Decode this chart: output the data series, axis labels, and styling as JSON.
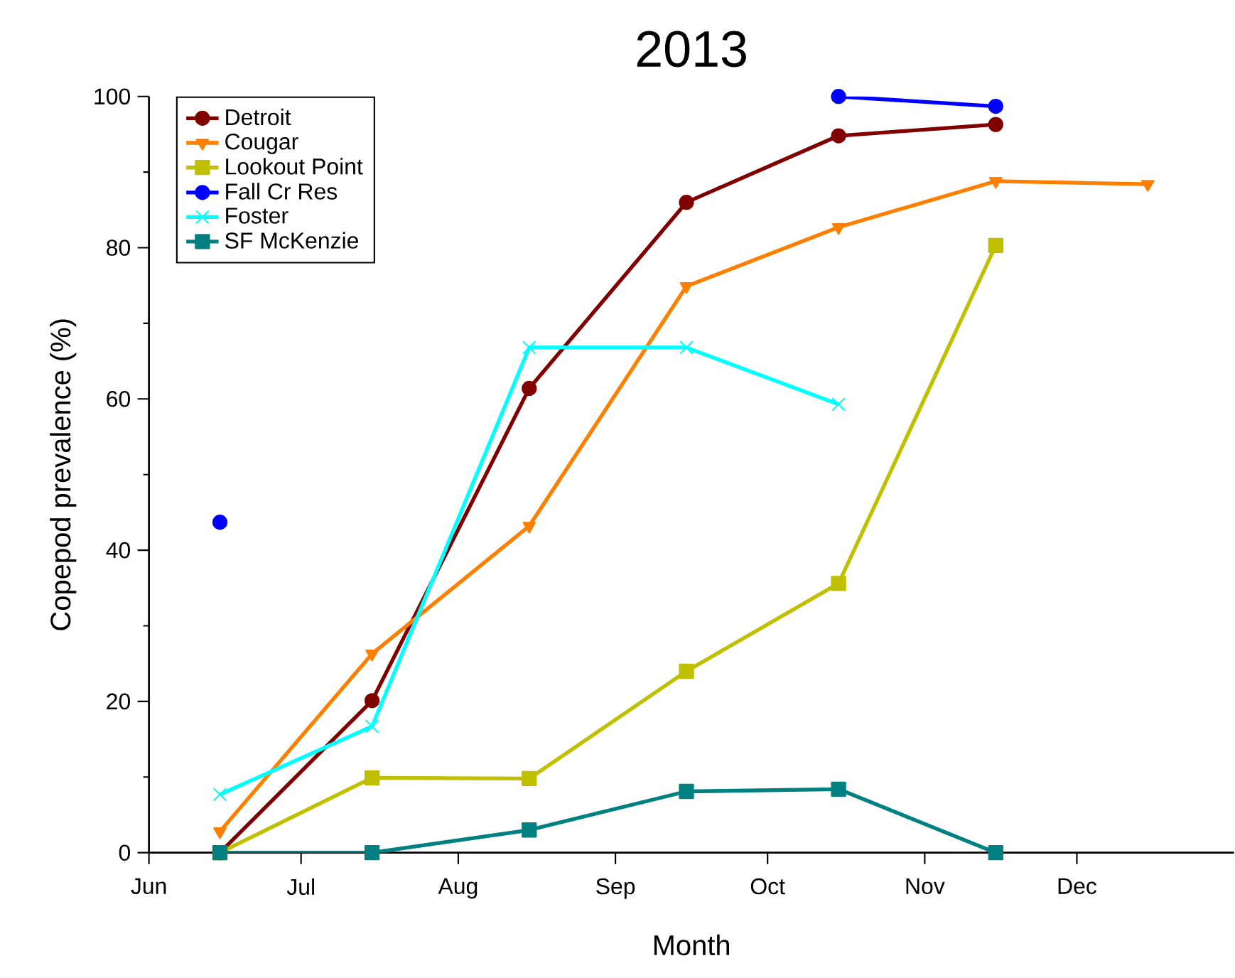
{
  "chart_data": {
    "type": "line",
    "title": "2013",
    "xlabel": "Month",
    "ylabel": "Copepod prevalence (%)",
    "x": [
      "2013-06-15",
      "2013-07-15",
      "2013-08-15",
      "2013-09-15",
      "2013-10-15",
      "2013-11-15",
      "2013-12-15"
    ],
    "xlim": [
      "2013-06-01",
      "2014-01-01"
    ],
    "xticks": [
      {
        "value": "2013-06-01",
        "label": "Jun"
      },
      {
        "value": "2013-07-01",
        "label": "Jul"
      },
      {
        "value": "2013-08-01",
        "label": "Aug"
      },
      {
        "value": "2013-09-01",
        "label": "Sep"
      },
      {
        "value": "2013-10-01",
        "label": "Oct"
      },
      {
        "value": "2013-11-01",
        "label": "Nov"
      },
      {
        "value": "2013-12-01",
        "label": "Dec"
      }
    ],
    "ylim": [
      0,
      100
    ],
    "yticks": [
      0,
      20,
      40,
      60,
      80,
      100
    ],
    "legend": "top left",
    "line_style": "solid",
    "series": [
      {
        "name": "Detroit",
        "color": "#800000",
        "marker": "circle",
        "values": [
          0,
          20.1,
          61.4,
          86,
          94.8,
          96.3,
          null
        ]
      },
      {
        "name": "Cougar",
        "color": "#ff8000",
        "marker": "triangle",
        "values": [
          2.8,
          26.3,
          43.2,
          74.9,
          82.7,
          88.8,
          88.4
        ]
      },
      {
        "name": "Lookout Point",
        "color": "#c0c000",
        "marker": "square",
        "values": [
          0,
          9.9,
          9.8,
          24,
          35.6,
          80.3,
          null
        ]
      },
      {
        "name": "Fall Cr Res",
        "color": "#0000ff",
        "marker": "circle",
        "values": [
          43.7,
          null,
          null,
          null,
          100,
          98.7,
          null
        ]
      },
      {
        "name": "Foster",
        "color": "#00ffff",
        "marker": "cross",
        "values": [
          7.7,
          16.7,
          66.8,
          66.8,
          59.3,
          null,
          null
        ]
      },
      {
        "name": "SF McKenzie",
        "color": "#008080",
        "marker": "square",
        "values": [
          0,
          0,
          3,
          8.1,
          8.4,
          0,
          null
        ]
      }
    ]
  }
}
